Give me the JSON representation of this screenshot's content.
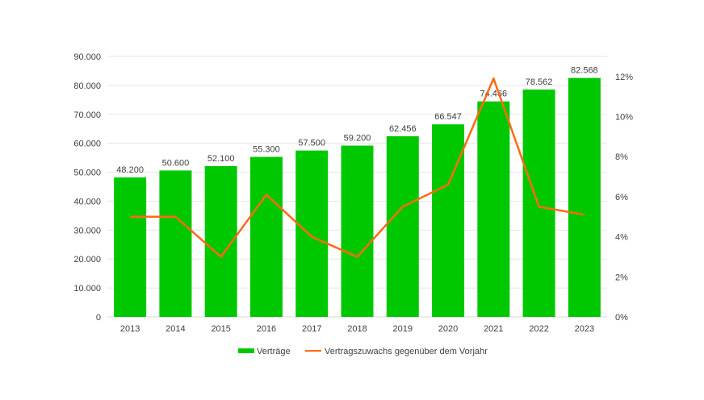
{
  "chart_data": {
    "type": "bar+line",
    "categories": [
      "2013",
      "2014",
      "2015",
      "2016",
      "2017",
      "2018",
      "2019",
      "2020",
      "2021",
      "2022",
      "2023"
    ],
    "series": [
      {
        "name": "Verträge",
        "type": "bar",
        "axis": "left",
        "color": "#00c800",
        "values": [
          48200,
          50600,
          52100,
          55300,
          57500,
          59200,
          62456,
          66547,
          74466,
          78562,
          82568
        ],
        "labels": [
          "48.200",
          "50.600",
          "52.100",
          "55.300",
          "57.500",
          "59.200",
          "62.456",
          "66.547",
          "74.466",
          "78.562",
          "82.568"
        ]
      },
      {
        "name": "Vertragszuwachs gegenüber dem Vorjahr",
        "type": "line",
        "axis": "right",
        "color": "#ff6a13",
        "values": [
          5.0,
          5.0,
          3.0,
          6.1,
          4.0,
          3.0,
          5.5,
          6.6,
          11.9,
          5.5,
          5.1
        ]
      }
    ],
    "y_left": {
      "min": 0,
      "max": 90000,
      "ticks": [
        "0",
        "10.000",
        "20.000",
        "30.000",
        "40.000",
        "50.000",
        "60.000",
        "70.000",
        "80.000",
        "90.000"
      ]
    },
    "y_right": {
      "min": 0,
      "max": 12,
      "unit": "%",
      "ticks": [
        "0%",
        "2%",
        "4%",
        "6%",
        "8%",
        "10%",
        "12%"
      ]
    },
    "grid": true,
    "legend": "bottom"
  }
}
